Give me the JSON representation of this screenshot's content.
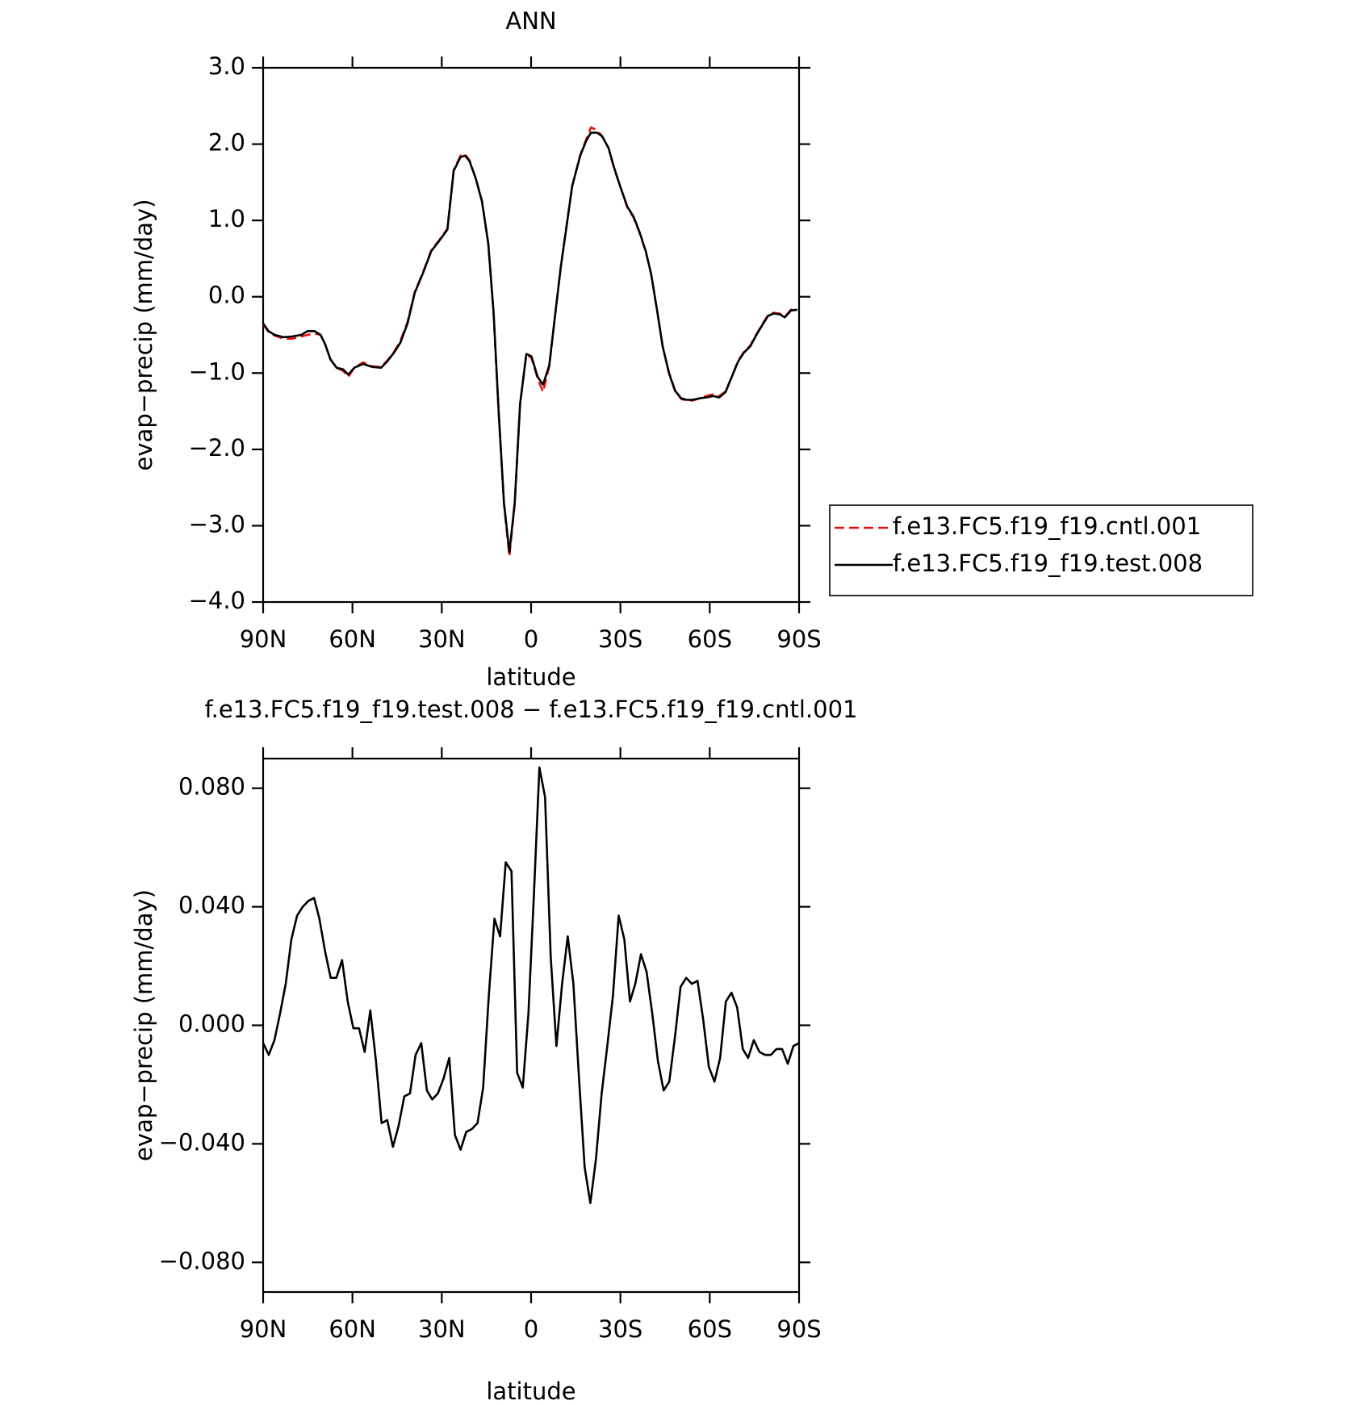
{
  "chart_data": [
    {
      "type": "line",
      "title": "ANN",
      "xlabel": "latitude",
      "ylabel": "evap−precip (mm/day)",
      "xlim": [
        90,
        -90
      ],
      "ylim": [
        -4,
        3
      ],
      "xticks": [
        {
          "value": 90,
          "label": "90N"
        },
        {
          "value": 60,
          "label": "60N"
        },
        {
          "value": 30,
          "label": "30N"
        },
        0,
        {
          "value": -30,
          "label": "30S"
        },
        {
          "value": -60,
          "label": "60S"
        },
        {
          "value": -90,
          "label": "90S"
        }
      ],
      "yticks": [
        {
          "value": 3,
          "label": "3.0"
        },
        {
          "value": 2,
          "label": "2.0"
        },
        {
          "value": 1,
          "label": "1.0"
        },
        {
          "value": 0,
          "label": "0.0"
        },
        {
          "value": -1,
          "label": "−1.0"
        },
        {
          "value": -2,
          "label": "−2.0"
        },
        {
          "value": -3,
          "label": "−3.0"
        },
        {
          "value": -4,
          "label": "−4.0"
        }
      ],
      "legend": "right",
      "x": [
        90,
        88.2,
        86.1,
        83.2,
        80.2,
        77.2,
        75.1,
        72.7,
        70.7,
        69.2,
        67.4,
        65.3,
        63.2,
        61.4,
        59.4,
        56.4,
        53.4,
        50.4,
        48.4,
        46,
        43.9,
        41.5,
        39.1,
        36.4,
        33.5,
        31.1,
        28.1,
        26,
        23.7,
        22.2,
        20.7,
        18.6,
        16.5,
        14.4,
        12.6,
        10.9,
        9.1,
        7.3,
        5.5,
        3.7,
        1.6,
        -0.1,
        -2.2,
        -4,
        -6.1,
        -8.2,
        -10,
        -12,
        -13.8,
        -16.5,
        -18.6,
        -20.1,
        -22.2,
        -23.9,
        -26,
        -27.8,
        -29.9,
        -32.3,
        -34.4,
        -36.4,
        -38.5,
        -40.3,
        -42.4,
        -44.2,
        -46.3,
        -48.3,
        -50.4,
        -52.2,
        -54.3,
        -56.7,
        -58.8,
        -61.1,
        -63.2,
        -65.3,
        -67.4,
        -69.5,
        -71.5,
        -73.6,
        -75.4,
        -77.5,
        -79.6,
        -81.4,
        -83.5,
        -85.2,
        -87.3,
        -89.4
      ],
      "series": [
        {
          "name": "f.e13.FC5.f19_f19.cntl.001",
          "color": "#e8120c",
          "dash": true,
          "values": [
            -0.36,
            -0.46,
            -0.51,
            -0.55,
            -0.55,
            -0.52,
            -0.5,
            -0.48,
            -0.5,
            -0.62,
            -0.82,
            -0.93,
            -0.97,
            -1.05,
            -0.93,
            -0.86,
            -0.91,
            -0.92,
            -0.84,
            -0.72,
            -0.58,
            -0.33,
            0.06,
            0.31,
            0.61,
            0.73,
            0.89,
            1.66,
            1.85,
            1.87,
            1.79,
            1.55,
            1.26,
            0.7,
            -0.22,
            -1.52,
            -2.72,
            -3.4,
            -2.72,
            -1.4,
            -0.76,
            -0.8,
            -1.07,
            -1.25,
            -0.91,
            -0.2,
            0.4,
            0.96,
            1.45,
            1.86,
            2.07,
            2.22,
            2.18,
            2.1,
            1.95,
            1.69,
            1.45,
            1.17,
            1.04,
            0.84,
            0.59,
            0.3,
            -0.2,
            -0.65,
            -0.99,
            -1.22,
            -1.34,
            -1.36,
            -1.36,
            -1.33,
            -1.3,
            -1.28,
            -1.3,
            -1.24,
            -1.05,
            -0.84,
            -0.72,
            -0.64,
            -0.51,
            -0.37,
            -0.24,
            -0.21,
            -0.22,
            -0.26,
            -0.17,
            -0.16
          ]
        },
        {
          "name": "f.e13.FC5.f19_f19.test.008",
          "color": "#000000",
          "dash": false,
          "values": [
            -0.35,
            -0.45,
            -0.5,
            -0.53,
            -0.52,
            -0.5,
            -0.45,
            -0.45,
            -0.5,
            -0.62,
            -0.82,
            -0.93,
            -0.95,
            -1.02,
            -0.93,
            -0.88,
            -0.92,
            -0.93,
            -0.85,
            -0.73,
            -0.6,
            -0.35,
            0.05,
            0.3,
            0.6,
            0.72,
            0.88,
            1.65,
            1.83,
            1.85,
            1.78,
            1.55,
            1.25,
            0.7,
            -0.2,
            -1.5,
            -2.7,
            -3.35,
            -2.7,
            -1.4,
            -0.75,
            -0.78,
            -1.05,
            -1.15,
            -0.9,
            -0.2,
            0.4,
            0.95,
            1.45,
            1.85,
            2.05,
            2.15,
            2.15,
            2.1,
            1.95,
            1.7,
            1.45,
            1.18,
            1.05,
            0.85,
            0.6,
            0.3,
            -0.2,
            -0.65,
            -1,
            -1.23,
            -1.33,
            -1.35,
            -1.35,
            -1.33,
            -1.32,
            -1.3,
            -1.32,
            -1.25,
            -1.05,
            -0.85,
            -0.73,
            -0.65,
            -0.52,
            -0.38,
            -0.25,
            -0.22,
            -0.23,
            -0.27,
            -0.18,
            -0.17
          ]
        }
      ]
    },
    {
      "type": "line",
      "title": "f.e13.FC5.f19_f19.test.008 − f.e13.FC5.f19_f19.cntl.001",
      "xlabel": "latitude",
      "ylabel": "evap−precip (mm/day)",
      "xlim": [
        90,
        -90
      ],
      "ylim": [
        -0.09,
        0.09
      ],
      "xticks": [
        {
          "value": 90,
          "label": "90N"
        },
        {
          "value": 60,
          "label": "60N"
        },
        {
          "value": 30,
          "label": "30N"
        },
        0,
        {
          "value": -30,
          "label": "30S"
        },
        {
          "value": -60,
          "label": "60S"
        },
        {
          "value": -90,
          "label": "90S"
        }
      ],
      "yticks": [
        {
          "value": 0.08,
          "label": "0.080"
        },
        {
          "value": 0.04,
          "label": "0.040"
        },
        {
          "value": 0,
          "label": "0.000"
        },
        {
          "value": -0.04,
          "label": "−0.040"
        },
        {
          "value": -0.08,
          "label": "−0.080"
        }
      ],
      "x": [
        90,
        88.1,
        86.2,
        84.3,
        82.4,
        80.5,
        78.6,
        76.7,
        74.8,
        72.9,
        71.1,
        69.2,
        67.3,
        65.4,
        63.5,
        61.6,
        59.7,
        57.8,
        55.9,
        54,
        52.1,
        50.2,
        48.3,
        46.4,
        44.5,
        42.6,
        40.7,
        38.8,
        36.9,
        35,
        33.2,
        31.3,
        29.4,
        27.5,
        25.6,
        23.7,
        21.8,
        19.9,
        18,
        16.1,
        14.2,
        12.3,
        10.4,
        8.5,
        6.6,
        4.7,
        2.8,
        0.9,
        -0.9,
        -2.8,
        -4.7,
        -6.6,
        -8.5,
        -10.4,
        -12.3,
        -14.2,
        -16.1,
        -18,
        -19.9,
        -21.8,
        -23.7,
        -25.6,
        -27.5,
        -29.4,
        -31.3,
        -33.2,
        -35,
        -36.9,
        -38.8,
        -40.7,
        -42.6,
        -44.5,
        -46.4,
        -48.3,
        -50.2,
        -52.1,
        -54,
        -55.9,
        -57.8,
        -59.7,
        -61.6,
        -63.5,
        -65.4,
        -67.3,
        -69.2,
        -71.1,
        -72.9,
        -74.8,
        -76.7,
        -78.6,
        -80.5,
        -82.4,
        -84.3,
        -86.2,
        -88.1,
        -90
      ],
      "series": [
        {
          "name": "f.e13.FC5.f19_f19.test.008 − f.e13.FC5.f19_f19.cntl.001",
          "color": "#000000",
          "dash": false,
          "values": [
            -0.006,
            -0.01,
            -0.005,
            0.004,
            0.014,
            0.029,
            0.037,
            0.04,
            0.042,
            0.043,
            0.036,
            0.025,
            0.016,
            0.016,
            0.022,
            0.008,
            -0.001,
            -0.001,
            -0.009,
            0.005,
            -0.012,
            -0.033,
            -0.032,
            -0.041,
            -0.034,
            -0.024,
            -0.023,
            -0.01,
            -0.006,
            -0.022,
            -0.025,
            -0.023,
            -0.018,
            -0.011,
            -0.037,
            -0.042,
            -0.036,
            -0.035,
            -0.033,
            -0.021,
            0.01,
            0.036,
            0.03,
            0.055,
            0.052,
            -0.016,
            -0.021,
            0.004,
            0.043,
            0.087,
            0.077,
            0.023,
            -0.007,
            0.014,
            0.03,
            0.014,
            -0.018,
            -0.048,
            -0.06,
            -0.045,
            -0.023,
            -0.007,
            0.01,
            0.037,
            0.029,
            0.008,
            0.014,
            0.024,
            0.018,
            0.004,
            -0.012,
            -0.022,
            -0.019,
            -0.004,
            0.013,
            0.016,
            0.014,
            0.015,
            0.002,
            -0.014,
            -0.019,
            -0.011,
            0.008,
            0.011,
            0.006,
            -0.008,
            -0.011,
            -0.005,
            -0.009,
            -0.01,
            -0.01,
            -0.008,
            -0.008,
            -0.013,
            -0.007,
            -0.006
          ]
        }
      ]
    }
  ]
}
